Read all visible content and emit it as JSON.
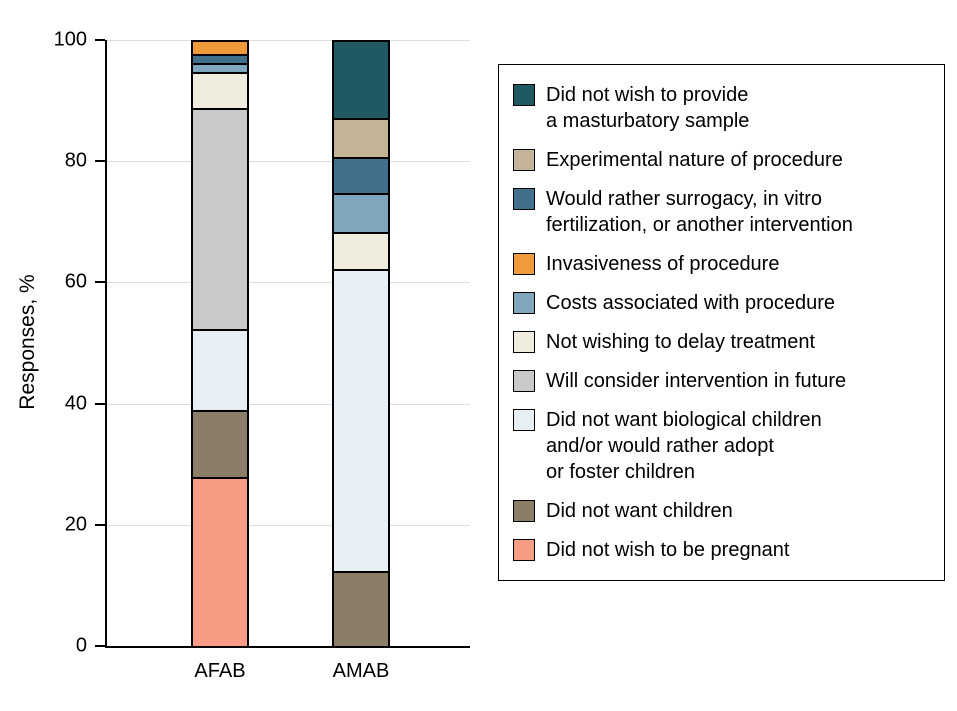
{
  "chart_data": {
    "type": "bar",
    "stacked": true,
    "title": "",
    "xlabel": "",
    "ylabel": "Responses, %",
    "categories": [
      "AFAB",
      "AMAB"
    ],
    "ylim": [
      0,
      100
    ],
    "yticks": [
      0,
      20,
      40,
      60,
      80,
      100
    ],
    "grid": true,
    "legend_position": "right-box",
    "series": [
      {
        "name": "Did not wish to be pregnant",
        "color": "#F79C84",
        "values": [
          28,
          0
        ]
      },
      {
        "name": "Did not want children",
        "color": "#8C7D69",
        "values": [
          11,
          12.5
        ]
      },
      {
        "name": "Did not want biological children and/or would rather adopt or foster children",
        "color": "#E8EFF4",
        "values": [
          13.5,
          50
        ]
      },
      {
        "name": "Will consider intervention in future",
        "color": "#C9CAC8",
        "values": [
          36.5,
          0
        ]
      },
      {
        "name": "Not wishing to delay treatment",
        "color": "#F0EDDE",
        "values": [
          6,
          6
        ]
      },
      {
        "name": "Costs associated with procedure",
        "color": "#7FA6BC",
        "values": [
          1.5,
          6.5
        ]
      },
      {
        "name": "Would rather surrogacy, in vitro fertilization, or another intervention",
        "color": "#41708C",
        "values": [
          1.5,
          6
        ]
      },
      {
        "name": "Invasiveness of procedure",
        "color": "#EF9B3B",
        "values": [
          2,
          0
        ]
      },
      {
        "name": "Experimental nature of procedure",
        "color": "#C3B497",
        "values": [
          0,
          6.5
        ]
      },
      {
        "name": "Did not wish to provide a masturbatory sample",
        "color": "#1F5961",
        "values": [
          0,
          12.5
        ]
      }
    ],
    "legend": [
      {
        "label": "Did not wish to provide\na masturbatory sample",
        "color": "#1F5961"
      },
      {
        "label": "Experimental nature of procedure",
        "color": "#C3B497"
      },
      {
        "label": "Would rather surrogacy, in vitro\nfertilization, or another intervention",
        "color": "#41708C"
      },
      {
        "label": "Invasiveness of procedure",
        "color": "#EF9B3B"
      },
      {
        "label": "Costs associated with procedure",
        "color": "#7FA6BC"
      },
      {
        "label": "Not wishing to delay treatment",
        "color": "#F0EDDE"
      },
      {
        "label": "Will consider intervention in future",
        "color": "#C9CAC8"
      },
      {
        "label": "Did not want biological children\nand/or would rather adopt\nor foster children",
        "color": "#E8EFF4"
      },
      {
        "label": "Did not want children",
        "color": "#8C7D69"
      },
      {
        "label": "Did not wish to be pregnant",
        "color": "#F79C84"
      }
    ]
  }
}
